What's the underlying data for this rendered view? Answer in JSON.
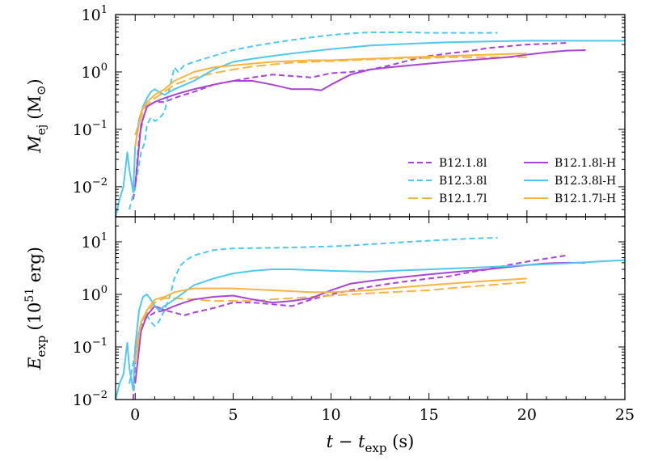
{
  "chart_data": {
    "type": "line",
    "xlabel": "t − t_exp (s)",
    "xlim": [
      -1,
      25
    ],
    "xticks": [
      0,
      5,
      10,
      15,
      20,
      25
    ],
    "legend": [
      {
        "name": "B12.1.8l",
        "color": "#a844d4",
        "dash": "dashed-short"
      },
      {
        "name": "B12.3.8l",
        "color": "#4fc8ee",
        "dash": "dashed-short"
      },
      {
        "name": "B12.1.7l",
        "color": "#f8b440",
        "dash": "dashed-long"
      },
      {
        "name": "B12.1.8l-H",
        "color": "#a844d4",
        "dash": "solid"
      },
      {
        "name": "B12.3.8l-H",
        "color": "#4fc8ee",
        "dash": "solid"
      },
      {
        "name": "B12.1.7l-H",
        "color": "#f8b440",
        "dash": "solid"
      }
    ],
    "panels": [
      {
        "id": "top",
        "ylabel": "M_ej (M_⊙)",
        "ylabel_parts": {
          "sym": "M",
          "sub": "ej",
          "unit_open": "(M",
          "unit_sub": "⊙",
          "unit_close": ")"
        },
        "yscale": "log",
        "ylim": [
          0.003,
          10
        ],
        "yticks": [
          {
            "base": "10",
            "exp": "−2",
            "value": 0.01
          },
          {
            "base": "10",
            "exp": "−1",
            "value": 0.1
          },
          {
            "base": "10",
            "exp": "0",
            "value": 1
          },
          {
            "base": "10",
            "exp": "1",
            "value": 10
          }
        ],
        "series": [
          {
            "name": "B12.1.8l",
            "x": [
              -0.1,
              0.0,
              0.2,
              0.4,
              0.6,
              1.0,
              1.5,
              2.0,
              2.5,
              3.0,
              4.0,
              5.0,
              6.0,
              7.0,
              8.0,
              9.0,
              10.0,
              11.0,
              12.0,
              13.0,
              14.0,
              15.0,
              16.0,
              17.0,
              18.0,
              19.0,
              20.0,
              21.0,
              22.0
            ],
            "y": [
              0.006,
              0.01,
              0.07,
              0.15,
              0.25,
              0.3,
              0.3,
              0.35,
              0.4,
              0.45,
              0.6,
              0.7,
              0.8,
              0.9,
              0.85,
              0.8,
              0.95,
              1.0,
              1.1,
              1.3,
              1.6,
              1.9,
              2.1,
              2.3,
              2.6,
              2.8,
              3.0,
              3.1,
              3.2
            ]
          },
          {
            "name": "B12.3.8l",
            "x": [
              -0.3,
              0.0,
              0.3,
              0.5,
              0.6,
              0.8,
              1.0,
              1.2,
              1.5,
              1.8,
              2.0,
              2.2,
              2.5,
              3.0,
              4.0,
              5.0,
              6.0,
              7.0,
              8.0,
              9.0,
              10.0,
              11.0,
              12.0,
              13.0,
              14.0,
              15.0,
              16.0,
              17.0,
              18.5
            ],
            "y": [
              0.004,
              0.01,
              0.04,
              0.06,
              0.12,
              0.16,
              0.14,
              0.15,
              0.2,
              0.6,
              1.2,
              1.0,
              1.3,
              1.5,
              1.9,
              2.4,
              2.8,
              3.2,
              3.6,
              4.0,
              4.4,
              4.7,
              4.9,
              4.9,
              4.9,
              4.8,
              4.8,
              4.8,
              4.8
            ]
          },
          {
            "name": "B12.1.7l",
            "x": [
              0.0,
              0.5,
              1.0,
              1.5,
              2.0,
              3.0,
              4.0,
              5.0,
              6.0,
              7.0,
              8.0,
              9.0,
              10.0,
              11.0,
              12.0,
              13.0,
              14.0,
              15.0,
              16.0,
              17.0,
              18.0,
              19.0,
              20.0
            ],
            "y": [
              0.08,
              0.25,
              0.35,
              0.45,
              0.6,
              0.8,
              0.95,
              1.1,
              1.25,
              1.35,
              1.45,
              1.5,
              1.55,
              1.6,
              1.65,
              1.7,
              1.75,
              1.75,
              1.8,
              1.8,
              1.8,
              1.8,
              1.8
            ]
          },
          {
            "name": "B12.1.8l-H",
            "x": [
              0.0,
              0.3,
              0.6,
              1.0,
              1.5,
              2.0,
              2.5,
              3.0,
              4.0,
              5.0,
              6.0,
              7.0,
              8.0,
              9.0,
              9.5,
              10.0,
              11.0,
              12.0,
              13.0,
              14.0,
              15.0,
              16.0,
              17.0,
              18.0,
              19.0,
              20.0,
              21.0,
              22.0,
              23.0
            ],
            "y": [
              0.01,
              0.12,
              0.25,
              0.3,
              0.35,
              0.4,
              0.45,
              0.5,
              0.6,
              0.7,
              0.7,
              0.6,
              0.5,
              0.5,
              0.48,
              0.6,
              0.9,
              1.1,
              1.2,
              1.3,
              1.4,
              1.5,
              1.6,
              1.7,
              1.8,
              2.0,
              2.2,
              2.35,
              2.4
            ]
          },
          {
            "name": "B12.3.8l-H",
            "x": [
              -1.0,
              -0.8,
              -0.6,
              -0.4,
              -0.3,
              -0.1,
              0.0,
              0.2,
              0.4,
              0.6,
              0.8,
              1.0,
              1.2,
              1.5,
              2.0,
              3.0,
              4.0,
              5.0,
              6.0,
              7.0,
              8.0,
              10.0,
              12.0,
              14.0,
              16.0,
              18.0,
              20.0,
              22.0,
              25.0
            ],
            "y": [
              0.003,
              0.006,
              0.01,
              0.04,
              0.02,
              0.008,
              0.05,
              0.15,
              0.25,
              0.35,
              0.45,
              0.5,
              0.45,
              0.4,
              0.5,
              0.7,
              1.1,
              1.5,
              1.7,
              1.9,
              2.1,
              2.5,
              2.9,
              3.1,
              3.3,
              3.4,
              3.5,
              3.5,
              3.5
            ]
          },
          {
            "name": "B12.1.7l-H",
            "x": [
              0.0,
              0.3,
              0.6,
              1.0,
              1.5,
              2.0,
              3.0,
              4.0,
              5.0,
              6.0,
              7.0,
              8.0,
              9.0,
              10.0,
              11.0,
              12.0,
              13.0,
              14.0,
              15.0,
              16.0,
              17.0,
              18.0,
              19.0,
              20.0
            ],
            "y": [
              0.05,
              0.2,
              0.3,
              0.4,
              0.5,
              0.7,
              1.0,
              1.2,
              1.3,
              1.4,
              1.5,
              1.55,
              1.6,
              1.6,
              1.65,
              1.7,
              1.75,
              1.8,
              1.85,
              1.9,
              1.95,
              2.0,
              2.05,
              2.1
            ]
          }
        ]
      },
      {
        "id": "bottom",
        "ylabel": "E_exp (10^51 erg)",
        "ylabel_parts": {
          "sym": "E",
          "sub": "exp",
          "unit_open": "(10",
          "unit_sup": "51",
          "unit_close": " erg)"
        },
        "yscale": "log",
        "ylim": [
          0.01,
          30
        ],
        "yticks": [
          {
            "base": "10",
            "exp": "−2",
            "value": 0.01
          },
          {
            "base": "10",
            "exp": "−1",
            "value": 0.1
          },
          {
            "base": "10",
            "exp": "0",
            "value": 1
          },
          {
            "base": "10",
            "exp": "1",
            "value": 10
          }
        ],
        "series": [
          {
            "name": "B12.1.8l",
            "x": [
              -0.1,
              0.0,
              0.2,
              0.5,
              1.0,
              1.5,
              2.0,
              2.5,
              3.0,
              4.0,
              5.0,
              6.0,
              7.0,
              8.0,
              9.0,
              10.0,
              11.0,
              12.0,
              13.0,
              14.0,
              15.0,
              16.0,
              17.0,
              18.0,
              19.0,
              20.0,
              21.0,
              22.0
            ],
            "y": [
              0.01,
              0.05,
              0.2,
              0.35,
              0.45,
              0.5,
              0.45,
              0.4,
              0.45,
              0.55,
              0.7,
              0.7,
              0.65,
              0.6,
              0.8,
              1.0,
              1.2,
              1.4,
              1.6,
              1.8,
              2.0,
              2.2,
              2.6,
              3.0,
              3.6,
              4.2,
              4.8,
              5.5
            ]
          },
          {
            "name": "B12.3.8l",
            "x": [
              -0.3,
              0.0,
              0.3,
              0.6,
              0.8,
              1.0,
              1.2,
              1.5,
              1.8,
              2.0,
              2.3,
              2.6,
              3.0,
              4.0,
              5.0,
              6.0,
              7.0,
              8.0,
              9.0,
              10.0,
              11.0,
              12.0,
              13.0,
              14.0,
              15.0,
              16.0,
              17.0,
              18.5
            ],
            "y": [
              0.02,
              0.08,
              0.3,
              0.4,
              0.3,
              0.25,
              0.3,
              0.5,
              1.0,
              2.0,
              3.5,
              4.5,
              5.5,
              7.0,
              7.5,
              7.6,
              7.7,
              7.8,
              8.0,
              8.2,
              8.5,
              9.0,
              9.5,
              10.0,
              10.5,
              11.0,
              11.5,
              12.0
            ]
          },
          {
            "name": "B12.1.7l",
            "x": [
              0.0,
              0.5,
              1.0,
              1.5,
              2.0,
              3.0,
              4.0,
              5.0,
              6.0,
              7.0,
              8.0,
              9.0,
              10.0,
              11.0,
              12.0,
              13.0,
              14.0,
              15.0,
              16.0,
              17.0,
              18.0,
              19.0,
              20.0
            ],
            "y": [
              0.1,
              0.4,
              0.7,
              0.85,
              0.85,
              0.8,
              0.75,
              0.75,
              0.75,
              0.8,
              0.85,
              0.9,
              0.95,
              1.0,
              1.05,
              1.1,
              1.15,
              1.2,
              1.3,
              1.4,
              1.5,
              1.6,
              1.7
            ]
          },
          {
            "name": "B12.1.8l-H",
            "x": [
              0.0,
              0.3,
              0.6,
              1.0,
              1.5,
              2.0,
              2.5,
              3.0,
              4.0,
              5.0,
              6.0,
              7.0,
              8.0,
              9.0,
              10.0,
              11.0,
              12.0,
              13.0,
              14.0,
              15.0,
              16.0,
              17.0,
              18.0,
              19.0,
              20.0,
              21.0,
              22.0,
              23.0
            ],
            "y": [
              0.02,
              0.2,
              0.4,
              0.6,
              0.5,
              0.6,
              0.7,
              0.8,
              0.9,
              0.95,
              0.8,
              0.7,
              0.75,
              0.85,
              1.2,
              1.6,
              1.8,
              2.0,
              2.2,
              2.4,
              2.6,
              2.8,
              3.0,
              3.3,
              3.6,
              3.9,
              4.0,
              4.0
            ]
          },
          {
            "name": "B12.3.8l-H",
            "x": [
              -1.0,
              -0.8,
              -0.6,
              -0.4,
              -0.3,
              -0.1,
              0.0,
              0.2,
              0.4,
              0.6,
              0.8,
              1.0,
              1.2,
              1.5,
              2.0,
              3.0,
              4.0,
              5.0,
              6.0,
              7.0,
              8.0,
              10.0,
              12.0,
              14.0,
              16.0,
              18.0,
              20.0,
              22.0,
              25.0
            ],
            "y": [
              0.01,
              0.02,
              0.03,
              0.12,
              0.04,
              0.015,
              0.1,
              0.5,
              0.9,
              1.0,
              0.8,
              0.6,
              0.5,
              0.6,
              0.8,
              1.5,
              2.0,
              2.5,
              2.8,
              3.0,
              3.0,
              2.8,
              2.7,
              2.9,
              3.1,
              3.3,
              3.6,
              3.9,
              4.5
            ]
          },
          {
            "name": "B12.1.7l-H",
            "x": [
              0.0,
              0.3,
              0.6,
              1.0,
              1.5,
              2.0,
              2.5,
              3.0,
              4.0,
              5.0,
              6.0,
              7.0,
              8.0,
              9.0,
              10.0,
              11.0,
              12.0,
              13.0,
              14.0,
              15.0,
              16.0,
              17.0,
              18.0,
              19.0,
              20.0
            ],
            "y": [
              0.05,
              0.3,
              0.5,
              0.8,
              0.9,
              1.1,
              1.2,
              1.3,
              1.3,
              1.3,
              1.25,
              1.2,
              1.15,
              1.1,
              1.1,
              1.15,
              1.2,
              1.3,
              1.4,
              1.5,
              1.6,
              1.7,
              1.8,
              1.9,
              2.0
            ]
          }
        ]
      }
    ]
  }
}
